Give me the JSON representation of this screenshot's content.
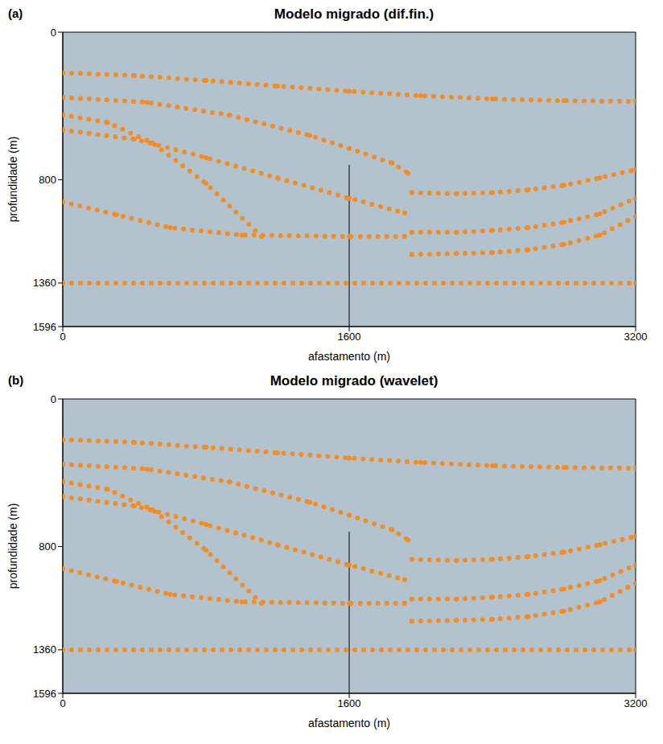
{
  "chart_data": [
    {
      "type": "line",
      "label": "(a)",
      "title": "Modelo migrado (dif.fin.)",
      "x_label": "afastamento (m)",
      "y_label": "profundidade (m)",
      "xlim": [
        0,
        3200
      ],
      "ylim": [
        0,
        1596
      ],
      "xticks": [
        0,
        1600,
        3200
      ],
      "yticks": [
        0,
        800,
        1360,
        1596
      ],
      "color": "#f28c28",
      "marker": "circle",
      "line_style": "dotted",
      "vertical_line": {
        "x": 1600,
        "y": [
          720,
          1596
        ]
      },
      "series": [
        {
          "x": [
            0,
            400,
            800,
            1200,
            1600,
            2000,
            2400,
            2800,
            3200
          ],
          "values": [
            220,
            235,
            262,
            292,
            320,
            345,
            362,
            372,
            375
          ]
        },
        {
          "x": [
            0,
            470,
            930,
            1380,
            1600,
            1840,
            1930
          ],
          "values": [
            354,
            380,
            450,
            560,
            630,
            710,
            765
          ]
        },
        {
          "x": [
            0,
            250,
            500,
            800,
            1110
          ],
          "values": [
            448,
            490,
            600,
            820,
            1108
          ]
        },
        {
          "x": [
            0,
            400,
            800,
            1200,
            1600,
            1910
          ],
          "values": [
            530,
            580,
            680,
            790,
            900,
            980
          ]
        },
        {
          "x": [
            0,
            300,
            600,
            1000,
            1600,
            1910
          ],
          "values": [
            920,
            990,
            1060,
            1100,
            1108,
            1108
          ]
        },
        {
          "x": [
            1950,
            2200,
            2400,
            2600,
            2800,
            3000,
            3200
          ],
          "values": [
            870,
            875,
            870,
            855,
            830,
            790,
            745
          ]
        },
        {
          "x": [
            1950,
            2200,
            2400,
            2600,
            2800,
            3000,
            3200
          ],
          "values": [
            1085,
            1085,
            1075,
            1060,
            1030,
            985,
            900
          ]
        },
        {
          "x": [
            1950,
            2200,
            2400,
            2600,
            2800,
            3000,
            3200
          ],
          "values": [
            1205,
            1200,
            1195,
            1180,
            1150,
            1100,
            1000
          ]
        },
        {
          "x": [
            0,
            3200
          ],
          "values": [
            1360,
            1360
          ]
        }
      ]
    },
    {
      "type": "line",
      "label": "(b)",
      "title": "Modelo migrado (wavelet)",
      "x_label": "afastamento (m)",
      "y_label": "profundidade (m)",
      "xlim": [
        0,
        3200
      ],
      "ylim": [
        0,
        1596
      ],
      "xticks": [
        0,
        1600,
        3200
      ],
      "yticks": [
        0,
        800,
        1360,
        1596
      ],
      "color": "#f28c28",
      "marker": "circle",
      "line_style": "dotted",
      "vertical_line": {
        "x": 1600,
        "y": [
          720,
          1596
        ]
      },
      "series": [
        {
          "x": [
            0,
            400,
            800,
            1200,
            1600,
            2000,
            2400,
            2800,
            3200
          ],
          "values": [
            220,
            235,
            262,
            292,
            320,
            345,
            362,
            372,
            375
          ]
        },
        {
          "x": [
            0,
            470,
            930,
            1380,
            1600,
            1840,
            1930
          ],
          "values": [
            354,
            380,
            450,
            560,
            630,
            710,
            765
          ]
        },
        {
          "x": [
            0,
            250,
            500,
            800,
            1110
          ],
          "values": [
            448,
            490,
            600,
            820,
            1108
          ]
        },
        {
          "x": [
            0,
            400,
            800,
            1200,
            1600,
            1910
          ],
          "values": [
            530,
            580,
            680,
            790,
            900,
            980
          ]
        },
        {
          "x": [
            0,
            300,
            600,
            1000,
            1600,
            1910
          ],
          "values": [
            920,
            990,
            1060,
            1100,
            1108,
            1108
          ]
        },
        {
          "x": [
            1950,
            2200,
            2400,
            2600,
            2800,
            3000,
            3200
          ],
          "values": [
            870,
            875,
            870,
            855,
            830,
            790,
            745
          ]
        },
        {
          "x": [
            1950,
            2200,
            2400,
            2600,
            2800,
            3000,
            3200
          ],
          "values": [
            1085,
            1085,
            1075,
            1060,
            1030,
            985,
            900
          ]
        },
        {
          "x": [
            1950,
            2200,
            2400,
            2600,
            2800,
            3000,
            3200
          ],
          "values": [
            1205,
            1200,
            1195,
            1180,
            1150,
            1100,
            1000
          ]
        },
        {
          "x": [
            0,
            3200
          ],
          "values": [
            1360,
            1360
          ]
        }
      ]
    }
  ]
}
